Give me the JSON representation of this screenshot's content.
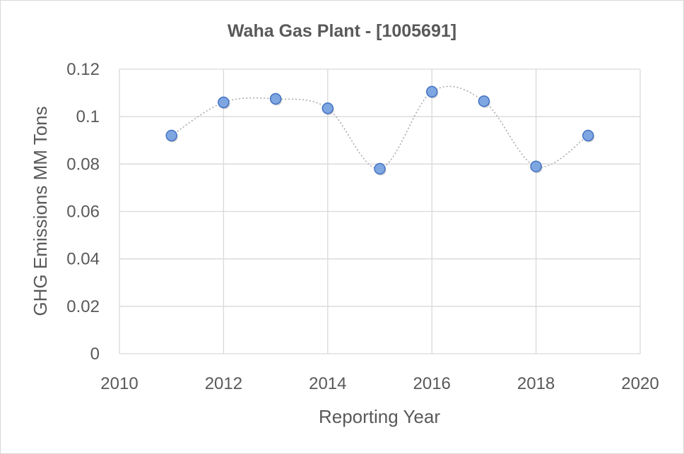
{
  "chart_data": {
    "type": "scatter",
    "title": "Waha Gas Plant - [1005691]",
    "xlabel": "Reporting Year",
    "ylabel": "GHG Emissions MM Tons",
    "xlim": [
      2010,
      2020
    ],
    "ylim": [
      0,
      0.12
    ],
    "x_ticks": [
      "2010",
      "2012",
      "2014",
      "2016",
      "2018",
      "2020"
    ],
    "y_ticks": [
      "0",
      "0.02",
      "0.04",
      "0.06",
      "0.08",
      "0.1",
      "0.12"
    ],
    "grid": true,
    "smoothed_line": true,
    "colors": {
      "marker_fill": "#7ea6e0",
      "marker_stroke": "#4472c4",
      "line": "#a6a6a6",
      "grid": "#d9d9d9"
    },
    "series": [
      {
        "x": [
          2011,
          2012,
          2013,
          2014,
          2015,
          2016,
          2017,
          2018,
          2019
        ],
        "y": [
          0.092,
          0.106,
          0.1075,
          0.1035,
          0.078,
          0.1105,
          0.1065,
          0.079,
          0.092
        ]
      }
    ]
  }
}
